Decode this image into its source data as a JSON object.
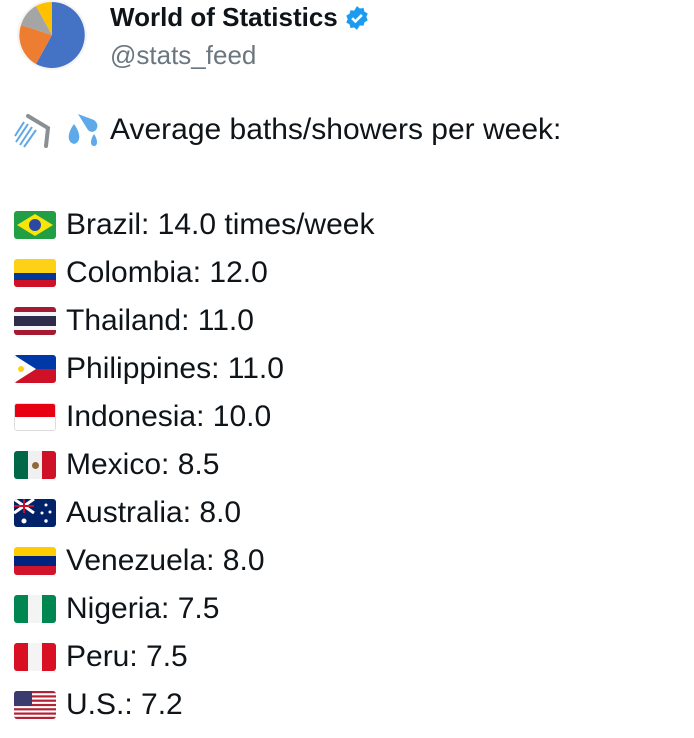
{
  "author": {
    "name": "World of Statistics",
    "handle": "@stats_feed",
    "verified": true,
    "badge_color": "#1d9bf0"
  },
  "post": {
    "headline": "Average baths/showers per week:",
    "headline_icons": [
      "shower-icon",
      "sweat-droplets-icon"
    ],
    "items": [
      {
        "flag": "brazil",
        "text": "Brazil: 14.0 times/week"
      },
      {
        "flag": "colombia",
        "text": "Colombia: 12.0"
      },
      {
        "flag": "thailand",
        "text": "Thailand: 11.0"
      },
      {
        "flag": "philippines",
        "text": "Philippines: 11.0"
      },
      {
        "flag": "indonesia",
        "text": "Indonesia: 10.0"
      },
      {
        "flag": "mexico",
        "text": "Mexico: 8.5"
      },
      {
        "flag": "australia",
        "text": "Australia: 8.0"
      },
      {
        "flag": "venezuela",
        "text": "Venezuela: 8.0"
      },
      {
        "flag": "nigeria",
        "text": "Nigeria: 7.5"
      },
      {
        "flag": "peru",
        "text": "Peru: 7.5"
      },
      {
        "flag": "usa",
        "text": "U.S.: 7.2"
      }
    ]
  }
}
